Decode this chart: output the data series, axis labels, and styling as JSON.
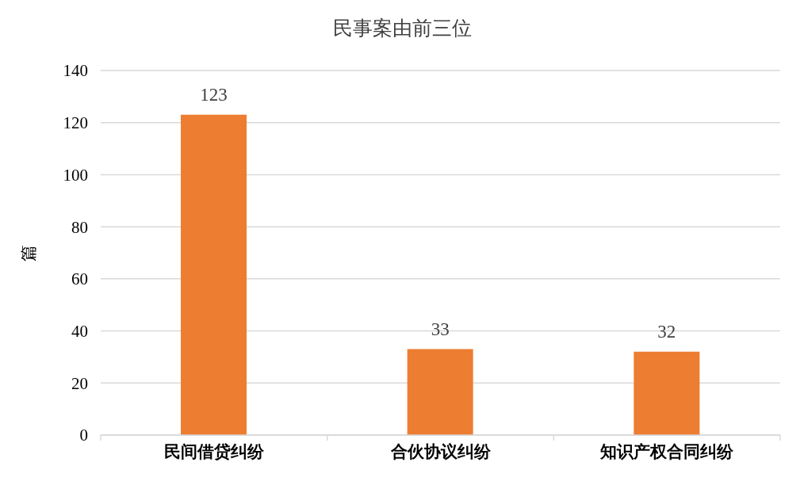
{
  "chart_data": {
    "type": "bar",
    "title": "民事案由前三位",
    "ylabel": "篇",
    "categories": [
      "民间借贷纠纷",
      "合伙协议纠纷",
      "知识产权合同纠纷"
    ],
    "values": [
      123,
      33,
      32
    ],
    "color": "#ed7d31",
    "ylim": [
      0,
      140
    ],
    "yticks": [
      0,
      20,
      40,
      60,
      80,
      100,
      120,
      140
    ],
    "grid": "y",
    "data_labels": true
  }
}
